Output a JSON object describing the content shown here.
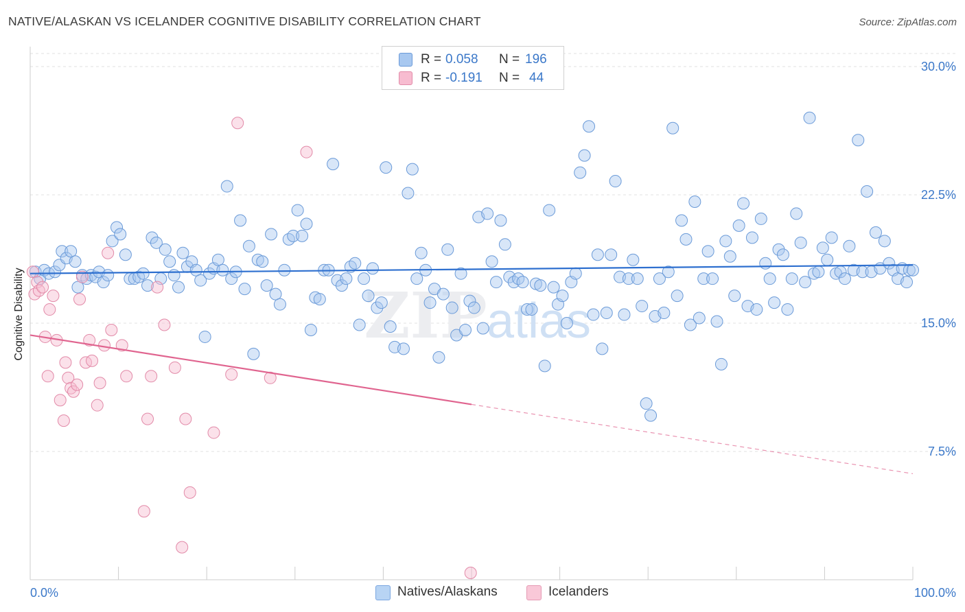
{
  "title": "NATIVE/ALASKAN VS ICELANDER COGNITIVE DISABILITY CORRELATION CHART",
  "source": "Source: ZipAtlas.com",
  "watermark": {
    "zip": "ZIP",
    "atlas": "atlas"
  },
  "legend": {
    "r_label": "R =",
    "n_label": "N =",
    "items": [
      {
        "r": "0.058",
        "n": "196",
        "color": "#a8c8f0",
        "border": "#6a9ad8"
      },
      {
        "r": "-0.191",
        "n": "44",
        "color": "#f7bcd0",
        "border": "#e28aa8"
      }
    ]
  },
  "bottom_legend": [
    {
      "label": "Natives/Alaskans",
      "color": "#b8d4f4",
      "border": "#7aa6e0"
    },
    {
      "label": "Icelanders",
      "color": "#f9c8d8",
      "border": "#e59ab4"
    }
  ],
  "chart_data": {
    "type": "scatter",
    "title": "NATIVE/ALASKAN VS ICELANDER COGNITIVE DISABILITY CORRELATION CHART",
    "xlabel": "",
    "ylabel": "Cognitive Disability",
    "xlim": [
      0,
      100
    ],
    "ylim": [
      0,
      30
    ],
    "x_tick_labels": [
      "0.0%",
      "100.0%"
    ],
    "y_ticks": [
      7.5,
      15.0,
      22.5,
      30.0
    ],
    "y_tick_labels": [
      "7.5%",
      "15.0%",
      "22.5%",
      "30.0%"
    ],
    "grid": true,
    "legend_position": "top-center",
    "series": [
      {
        "name": "Natives/Alaskans",
        "color": "#6a9ad8",
        "fill": "#a8c8f0",
        "line_color": "#2d6fcf",
        "trend": {
          "x": [
            0,
            100
          ],
          "y": [
            17.9,
            18.4
          ],
          "dashed_from": null
        },
        "points": [
          [
            0.6,
            18.0
          ],
          [
            1.1,
            17.6
          ],
          [
            1.6,
            18.1
          ],
          [
            2.1,
            17.9
          ],
          [
            2.8,
            18.0
          ],
          [
            3.3,
            18.4
          ],
          [
            3.6,
            19.2
          ],
          [
            4.1,
            18.8
          ],
          [
            4.6,
            19.2
          ],
          [
            5.1,
            18.6
          ],
          [
            5.4,
            17.1
          ],
          [
            5.9,
            17.8
          ],
          [
            6.4,
            17.6
          ],
          [
            6.9,
            17.8
          ],
          [
            7.4,
            17.7
          ],
          [
            7.8,
            18.0
          ],
          [
            8.3,
            17.4
          ],
          [
            8.8,
            17.8
          ],
          [
            9.3,
            19.8
          ],
          [
            9.8,
            20.6
          ],
          [
            10.2,
            20.2
          ],
          [
            10.8,
            19.0
          ],
          [
            11.3,
            17.6
          ],
          [
            11.8,
            17.6
          ],
          [
            12.3,
            17.7
          ],
          [
            12.8,
            17.9
          ],
          [
            13.3,
            17.2
          ],
          [
            13.8,
            20.0
          ],
          [
            14.3,
            19.7
          ],
          [
            14.8,
            17.6
          ],
          [
            15.3,
            19.3
          ],
          [
            15.8,
            18.6
          ],
          [
            16.3,
            17.8
          ],
          [
            16.8,
            17.1
          ],
          [
            17.3,
            19.1
          ],
          [
            17.8,
            18.3
          ],
          [
            18.3,
            18.6
          ],
          [
            18.8,
            18.1
          ],
          [
            19.3,
            17.5
          ],
          [
            19.8,
            14.2
          ],
          [
            20.3,
            17.9
          ],
          [
            20.8,
            18.2
          ],
          [
            21.3,
            18.7
          ],
          [
            21.8,
            18.1
          ],
          [
            22.3,
            23.0
          ],
          [
            22.8,
            17.6
          ],
          [
            23.3,
            18.0
          ],
          [
            23.8,
            21.0
          ],
          [
            24.3,
            17.0
          ],
          [
            24.8,
            19.5
          ],
          [
            25.3,
            13.2
          ],
          [
            25.8,
            18.7
          ],
          [
            26.3,
            18.6
          ],
          [
            26.8,
            17.2
          ],
          [
            27.3,
            20.2
          ],
          [
            27.8,
            16.7
          ],
          [
            28.3,
            16.1
          ],
          [
            28.8,
            18.1
          ],
          [
            29.3,
            19.9
          ],
          [
            29.8,
            20.1
          ],
          [
            30.3,
            21.6
          ],
          [
            30.8,
            20.1
          ],
          [
            31.3,
            20.8
          ],
          [
            31.8,
            14.6
          ],
          [
            32.3,
            16.5
          ],
          [
            32.8,
            16.4
          ],
          [
            33.3,
            18.1
          ],
          [
            33.8,
            18.1
          ],
          [
            34.3,
            24.3
          ],
          [
            34.8,
            17.5
          ],
          [
            35.3,
            17.2
          ],
          [
            35.8,
            17.6
          ],
          [
            36.3,
            18.3
          ],
          [
            36.8,
            18.5
          ],
          [
            37.3,
            14.9
          ],
          [
            37.8,
            17.6
          ],
          [
            38.3,
            16.6
          ],
          [
            38.8,
            18.2
          ],
          [
            39.3,
            15.9
          ],
          [
            39.8,
            16.2
          ],
          [
            40.3,
            24.1
          ],
          [
            40.8,
            14.8
          ],
          [
            41.3,
            13.6
          ],
          [
            42.3,
            13.5
          ],
          [
            42.8,
            22.6
          ],
          [
            43.3,
            24.0
          ],
          [
            43.8,
            17.6
          ],
          [
            44.3,
            19.1
          ],
          [
            44.8,
            18.1
          ],
          [
            45.3,
            16.2
          ],
          [
            45.8,
            17.0
          ],
          [
            46.3,
            13.0
          ],
          [
            46.8,
            16.7
          ],
          [
            47.3,
            19.3
          ],
          [
            47.8,
            15.9
          ],
          [
            48.3,
            14.3
          ],
          [
            48.8,
            17.9
          ],
          [
            49.3,
            14.6
          ],
          [
            49.8,
            16.3
          ],
          [
            50.3,
            15.9
          ],
          [
            50.8,
            21.2
          ],
          [
            51.3,
            14.7
          ],
          [
            51.8,
            21.4
          ],
          [
            52.3,
            18.6
          ],
          [
            52.8,
            17.4
          ],
          [
            53.3,
            21.0
          ],
          [
            53.8,
            19.6
          ],
          [
            54.3,
            17.7
          ],
          [
            54.8,
            17.4
          ],
          [
            55.3,
            17.6
          ],
          [
            55.8,
            17.4
          ],
          [
            56.3,
            15.8
          ],
          [
            56.8,
            15.8
          ],
          [
            57.3,
            17.3
          ],
          [
            57.8,
            17.2
          ],
          [
            58.3,
            12.5
          ],
          [
            58.8,
            21.6
          ],
          [
            59.3,
            17.1
          ],
          [
            59.8,
            16.1
          ],
          [
            60.3,
            16.6
          ],
          [
            60.8,
            15.0
          ],
          [
            61.3,
            17.4
          ],
          [
            61.8,
            17.9
          ],
          [
            62.3,
            23.8
          ],
          [
            62.8,
            24.8
          ],
          [
            63.3,
            26.5
          ],
          [
            63.8,
            15.5
          ],
          [
            64.3,
            19.0
          ],
          [
            64.8,
            13.5
          ],
          [
            65.3,
            15.6
          ],
          [
            65.8,
            19.0
          ],
          [
            66.3,
            23.3
          ],
          [
            66.8,
            17.7
          ],
          [
            67.3,
            15.5
          ],
          [
            67.8,
            17.6
          ],
          [
            68.3,
            18.7
          ],
          [
            68.8,
            17.6
          ],
          [
            69.3,
            16.0
          ],
          [
            69.8,
            10.3
          ],
          [
            70.3,
            9.6
          ],
          [
            70.8,
            15.4
          ],
          [
            71.3,
            17.6
          ],
          [
            71.8,
            15.6
          ],
          [
            72.3,
            18.0
          ],
          [
            72.8,
            26.4
          ],
          [
            73.3,
            16.6
          ],
          [
            73.8,
            21.0
          ],
          [
            74.3,
            19.9
          ],
          [
            74.8,
            14.9
          ],
          [
            75.3,
            22.1
          ],
          [
            75.8,
            15.3
          ],
          [
            76.3,
            17.6
          ],
          [
            76.8,
            19.2
          ],
          [
            77.3,
            17.6
          ],
          [
            77.8,
            15.1
          ],
          [
            78.3,
            12.6
          ],
          [
            78.8,
            19.8
          ],
          [
            79.3,
            18.9
          ],
          [
            79.8,
            16.6
          ],
          [
            80.3,
            20.7
          ],
          [
            80.8,
            22.0
          ],
          [
            81.3,
            16.0
          ],
          [
            81.8,
            20.0
          ],
          [
            82.3,
            15.8
          ],
          [
            82.8,
            21.1
          ],
          [
            83.3,
            18.5
          ],
          [
            83.8,
            17.6
          ],
          [
            84.3,
            16.2
          ],
          [
            84.8,
            19.3
          ],
          [
            85.3,
            19.0
          ],
          [
            85.8,
            15.8
          ],
          [
            86.3,
            17.6
          ],
          [
            86.8,
            21.4
          ],
          [
            87.3,
            19.7
          ],
          [
            87.8,
            17.4
          ],
          [
            88.3,
            27.0
          ],
          [
            88.8,
            17.9
          ],
          [
            89.3,
            18.0
          ],
          [
            89.8,
            19.4
          ],
          [
            90.3,
            18.7
          ],
          [
            90.8,
            20.0
          ],
          [
            91.3,
            17.9
          ],
          [
            91.8,
            18.0
          ],
          [
            92.3,
            17.6
          ],
          [
            92.8,
            19.5
          ],
          [
            93.3,
            18.1
          ],
          [
            93.8,
            25.7
          ],
          [
            94.3,
            18.0
          ],
          [
            94.8,
            22.7
          ],
          [
            95.3,
            18.0
          ],
          [
            95.8,
            20.3
          ],
          [
            96.3,
            18.2
          ],
          [
            96.8,
            19.8
          ],
          [
            97.3,
            18.5
          ],
          [
            97.8,
            18.1
          ],
          [
            98.3,
            17.6
          ],
          [
            98.8,
            18.2
          ],
          [
            99.3,
            17.4
          ],
          [
            99.6,
            18.1
          ],
          [
            100.0,
            18.1
          ]
        ]
      },
      {
        "name": "Icelanders",
        "color": "#e28aa8",
        "fill": "#f7bcd0",
        "line_color": "#e0648f",
        "trend": {
          "x": [
            0,
            100
          ],
          "y": [
            14.3,
            6.2
          ],
          "dashed_from": 50
        },
        "points": [
          [
            0.3,
            18.0
          ],
          [
            0.5,
            16.7
          ],
          [
            0.8,
            17.4
          ],
          [
            1.0,
            16.9
          ],
          [
            1.4,
            17.1
          ],
          [
            1.7,
            14.2
          ],
          [
            2.0,
            11.9
          ],
          [
            2.2,
            15.8
          ],
          [
            2.6,
            16.6
          ],
          [
            3.0,
            14.0
          ],
          [
            3.4,
            10.5
          ],
          [
            3.8,
            9.3
          ],
          [
            4.0,
            12.7
          ],
          [
            4.3,
            11.8
          ],
          [
            4.6,
            11.2
          ],
          [
            4.9,
            11.0
          ],
          [
            5.3,
            11.4
          ],
          [
            5.6,
            16.4
          ],
          [
            5.9,
            17.7
          ],
          [
            6.3,
            12.7
          ],
          [
            6.7,
            14.0
          ],
          [
            7.0,
            12.8
          ],
          [
            7.6,
            10.2
          ],
          [
            7.9,
            11.5
          ],
          [
            8.4,
            13.7
          ],
          [
            8.8,
            19.1
          ],
          [
            9.2,
            14.6
          ],
          [
            10.4,
            13.7
          ],
          [
            10.9,
            11.9
          ],
          [
            12.9,
            4.0
          ],
          [
            13.3,
            9.4
          ],
          [
            13.7,
            11.9
          ],
          [
            14.4,
            17.1
          ],
          [
            15.2,
            14.9
          ],
          [
            16.4,
            12.4
          ],
          [
            17.2,
            1.9
          ],
          [
            17.6,
            9.4
          ],
          [
            18.1,
            5.1
          ],
          [
            20.8,
            8.6
          ],
          [
            22.8,
            12.0
          ],
          [
            23.5,
            26.7
          ],
          [
            27.2,
            11.8
          ],
          [
            31.3,
            25.0
          ],
          [
            49.9,
            0.4
          ]
        ]
      }
    ]
  }
}
